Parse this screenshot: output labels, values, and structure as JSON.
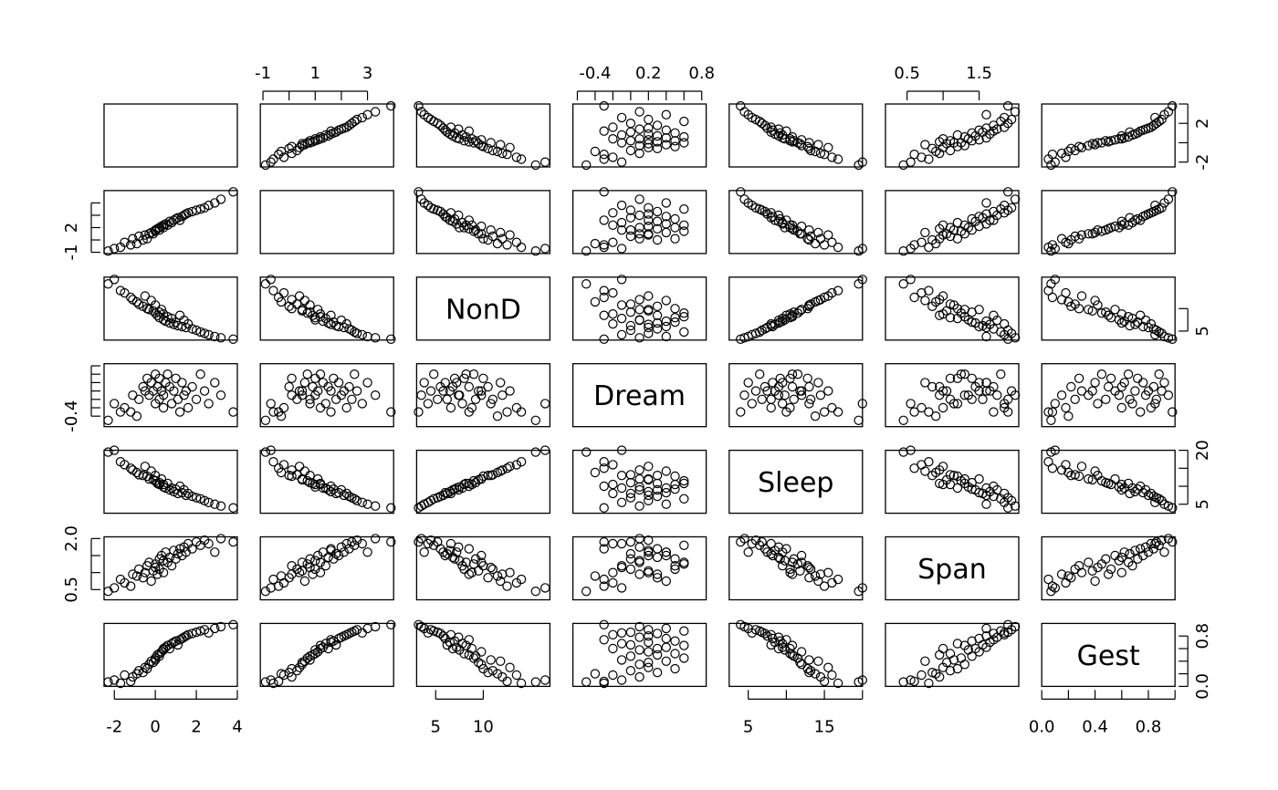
{
  "chart_data": {
    "type": "scatter",
    "variables": [
      "",
      "",
      "NonD",
      "Dream",
      "Sleep",
      "Span",
      "Gest"
    ],
    "axes": [
      {
        "range": [
          -2.5,
          4.0
        ],
        "ticks": [
          -2,
          0,
          2,
          4
        ],
        "labels": [
          "-2",
          "0",
          "2",
          "4"
        ],
        "minor": []
      },
      {
        "range": [
          -1.1,
          4.0
        ],
        "ticks": [
          -1,
          0,
          1,
          2,
          3
        ],
        "labels": [
          "-1",
          "",
          "1",
          "",
          "3"
        ],
        "minor": []
      },
      {
        "range": [
          3.0,
          17.0
        ],
        "ticks": [
          5,
          10
        ],
        "labels": [
          "5",
          "10"
        ],
        "minor": []
      },
      {
        "range": [
          -0.65,
          0.85
        ],
        "ticks": [
          -0.4,
          -0.2,
          0.0,
          0.2,
          0.4,
          0.6,
          0.8
        ],
        "labels": [
          "-0.4",
          "",
          "",
          "0.2",
          "",
          "",
          "0.8"
        ],
        "minor": [
          -0.6
        ]
      },
      {
        "range": [
          2.5,
          20.0
        ],
        "ticks": [
          5,
          10,
          15,
          20
        ],
        "labels": [
          "5",
          "",
          "15",
          ""
        ],
        "minor": []
      },
      {
        "range": [
          0.2,
          2.05
        ],
        "ticks": [
          0.5,
          1.0,
          1.5
        ],
        "labels": [
          "0.5",
          "",
          "1.5"
        ],
        "minor": []
      },
      {
        "range": [
          0.0,
          1.0
        ],
        "ticks": [
          0.0,
          0.2,
          0.4,
          0.6,
          0.8,
          1.0
        ],
        "labels": [
          "0.0",
          "",
          "0.4",
          "",
          "0.8",
          ""
        ],
        "minor": []
      }
    ],
    "side_ticks": [
      {
        "range": [
          -2.5,
          4.0
        ],
        "ticks": [
          -2,
          0,
          2,
          4
        ],
        "labels": [
          "-2",
          "",
          "2",
          ""
        ]
      },
      {
        "range": [
          -1.1,
          4.0
        ],
        "ticks": [
          -1,
          0,
          1,
          2,
          3
        ],
        "labels": [
          "-1",
          "",
          "2",
          "",
          ""
        ]
      },
      {
        "range": [
          3.0,
          17.0
        ],
        "ticks": [
          5,
          10
        ],
        "labels": [
          "5",
          ""
        ]
      },
      {
        "range": [
          -0.65,
          0.85
        ],
        "ticks": [
          -0.4,
          -0.2,
          0.0,
          0.2,
          0.4,
          0.6,
          0.8
        ],
        "labels": [
          "-0.4",
          "",
          "",
          "",
          "",
          "",
          ""
        ]
      },
      {
        "range": [
          2.5,
          20.0
        ],
        "ticks": [
          5,
          10,
          15,
          20
        ],
        "labels": [
          "5",
          "",
          "",
          "20"
        ]
      },
      {
        "range": [
          0.2,
          2.05
        ],
        "ticks": [
          0.5,
          1.0,
          1.5,
          2.0
        ],
        "labels": [
          "0.5",
          "",
          "",
          "2.0"
        ]
      },
      {
        "range": [
          0.0,
          1.0
        ],
        "ticks": [
          0.0,
          0.2,
          0.4,
          0.6,
          0.8
        ],
        "labels": [
          "0.0",
          "",
          "",
          "",
          "0.8"
        ]
      }
    ],
    "points": [
      {
        "v": [
          -2.3,
          -0.9,
          15.5,
          -0.5,
          19.5,
          0.45,
          0.07
        ]
      },
      {
        "v": [
          -2.0,
          -0.7,
          16.5,
          -0.1,
          20.0,
          0.55,
          0.1
        ]
      },
      {
        "v": [
          -1.7,
          -0.6,
          14.0,
          -0.3,
          16.8,
          0.8,
          0.05
        ]
      },
      {
        "v": [
          -1.5,
          -0.2,
          13.5,
          -0.2,
          16.0,
          0.7,
          0.18
        ]
      },
      {
        "v": [
          -1.2,
          -0.4,
          12.5,
          -0.3,
          15.0,
          0.6,
          0.08
        ]
      },
      {
        "v": [
          -1.1,
          0.1,
          12.0,
          0.1,
          14.5,
          0.95,
          0.15
        ]
      },
      {
        "v": [
          -0.9,
          -0.3,
          11.5,
          -0.4,
          13.8,
          0.9,
          0.2
        ]
      },
      {
        "v": [
          -0.8,
          0.3,
          11.0,
          0.0,
          13.2,
          1.1,
          0.25
        ]
      },
      {
        "v": [
          -0.6,
          0.0,
          10.5,
          0.3,
          13.0,
          0.85,
          0.22
        ]
      },
      {
        "v": [
          -0.5,
          0.4,
          12.8,
          0.2,
          15.5,
          1.0,
          0.3
        ]
      },
      {
        "v": [
          -0.4,
          0.1,
          10.0,
          0.5,
          12.8,
          1.2,
          0.28
        ]
      },
      {
        "v": [
          -0.3,
          0.5,
          9.8,
          0.1,
          12.0,
          1.3,
          0.35
        ]
      },
      {
        "v": [
          -0.2,
          0.6,
          11.8,
          0.4,
          14.2,
          0.75,
          0.4
        ]
      },
      {
        "v": [
          -0.1,
          0.5,
          9.5,
          0.2,
          11.8,
          1.05,
          0.38
        ]
      },
      {
        "v": [
          0.0,
          0.8,
          10.8,
          -0.1,
          13.0,
          1.15,
          0.42
        ]
      },
      {
        "v": [
          0.0,
          0.7,
          9.0,
          0.6,
          11.5,
          1.25,
          0.45
        ]
      },
      {
        "v": [
          0.1,
          0.9,
          8.5,
          0.3,
          10.8,
          0.95,
          0.5
        ]
      },
      {
        "v": [
          0.2,
          0.8,
          9.2,
          0.0,
          11.0,
          1.4,
          0.48
        ]
      },
      {
        "v": [
          0.2,
          1.0,
          8.0,
          0.5,
          10.5,
          1.1,
          0.52
        ]
      },
      {
        "v": [
          0.3,
          1.1,
          9.8,
          0.2,
          12.0,
          1.5,
          0.55
        ]
      },
      {
        "v": [
          0.4,
          1.0,
          7.5,
          0.1,
          9.8,
          1.35,
          0.58
        ]
      },
      {
        "v": [
          0.4,
          1.2,
          8.8,
          -0.2,
          10.5,
          1.0,
          0.6
        ]
      },
      {
        "v": [
          0.5,
          1.3,
          7.2,
          0.4,
          9.5,
          1.6,
          0.62
        ]
      },
      {
        "v": [
          0.6,
          1.2,
          8.2,
          0.6,
          10.8,
          1.3,
          0.65
        ]
      },
      {
        "v": [
          0.7,
          1.5,
          6.8,
          0.3,
          9.0,
          1.45,
          0.6
        ]
      },
      {
        "v": [
          0.8,
          1.4,
          7.8,
          -0.1,
          9.5,
          1.2,
          0.68
        ]
      },
      {
        "v": [
          0.9,
          1.6,
          6.5,
          0.2,
          8.5,
          1.65,
          0.7
        ]
      },
      {
        "v": [
          1.0,
          1.7,
          7.0,
          0.5,
          9.2,
          1.4,
          0.72
        ]
      },
      {
        "v": [
          1.1,
          1.8,
          6.2,
          0.0,
          8.0,
          1.55,
          0.66
        ]
      },
      {
        "v": [
          1.2,
          1.6,
          8.5,
          -0.3,
          10.0,
          1.7,
          0.74
        ]
      },
      {
        "v": [
          1.3,
          1.9,
          6.0,
          0.4,
          8.2,
          1.5,
          0.76
        ]
      },
      {
        "v": [
          1.4,
          2.0,
          7.4,
          0.1,
          9.0,
          1.75,
          0.78
        ]
      },
      {
        "v": [
          1.5,
          2.1,
          5.8,
          0.2,
          7.5,
          1.6,
          0.8
        ]
      },
      {
        "v": [
          1.6,
          2.2,
          6.6,
          -0.2,
          8.0,
          1.85,
          0.82
        ]
      },
      {
        "v": [
          1.8,
          2.3,
          5.5,
          0.3,
          7.2,
          1.7,
          0.84
        ]
      },
      {
        "v": [
          2.0,
          2.4,
          5.2,
          0.0,
          6.8,
          1.9,
          0.86
        ]
      },
      {
        "v": [
          2.2,
          2.5,
          4.8,
          0.6,
          6.5,
          1.8,
          0.88
        ]
      },
      {
        "v": [
          2.4,
          2.6,
          4.5,
          0.2,
          6.0,
          1.95,
          0.9
        ]
      },
      {
        "v": [
          2.6,
          2.8,
          4.2,
          -0.1,
          5.5,
          1.85,
          0.85
        ]
      },
      {
        "v": [
          2.9,
          3.0,
          3.8,
          0.4,
          5.0,
          1.6,
          0.92
        ]
      },
      {
        "v": [
          3.2,
          3.3,
          3.5,
          0.1,
          4.5,
          2.0,
          0.95
        ]
      },
      {
        "v": [
          3.8,
          3.9,
          3.2,
          -0.3,
          4.0,
          1.9,
          0.98
        ]
      }
    ]
  }
}
